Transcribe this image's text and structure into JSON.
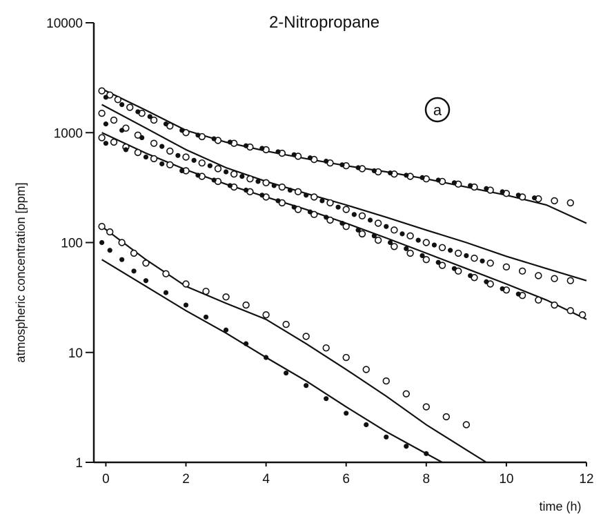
{
  "chart_data": {
    "type": "scatter",
    "title": "2-Nitropropane",
    "annotation": "a",
    "xlabel": "time (h)",
    "ylabel": "atmospheric concentration  [ppm]",
    "xlim": [
      -0.3,
      12
    ],
    "ylim": [
      1,
      10000
    ],
    "yscale": "log",
    "grid": false,
    "x_ticks": [
      0,
      2,
      4,
      6,
      8,
      10,
      12
    ],
    "x_tick_labels": [
      "0",
      "2",
      "4",
      "6",
      "8",
      "10",
      "12"
    ],
    "y_ticks": [
      1,
      10,
      100,
      1000,
      10000
    ],
    "y_tick_labels": [
      "1",
      "10",
      "100",
      "1000",
      "10000"
    ],
    "series": [
      {
        "marker": "open",
        "points": [
          [
            -0.1,
            2400
          ],
          [
            0.1,
            2200
          ],
          [
            0.3,
            2000
          ],
          [
            0.6,
            1700
          ],
          [
            0.9,
            1500
          ],
          [
            1.2,
            1300
          ],
          [
            1.6,
            1150
          ],
          [
            2.0,
            1000
          ],
          [
            2.4,
            920
          ],
          [
            2.8,
            850
          ],
          [
            3.2,
            800
          ],
          [
            3.6,
            740
          ],
          [
            4.0,
            700
          ],
          [
            4.4,
            650
          ],
          [
            4.8,
            610
          ],
          [
            5.2,
            570
          ],
          [
            5.6,
            530
          ],
          [
            6.0,
            500
          ],
          [
            6.4,
            470
          ],
          [
            6.8,
            440
          ],
          [
            7.2,
            420
          ],
          [
            7.6,
            400
          ],
          [
            8.0,
            380
          ],
          [
            8.4,
            360
          ],
          [
            8.8,
            340
          ],
          [
            9.2,
            320
          ],
          [
            9.6,
            300
          ],
          [
            10.0,
            280
          ],
          [
            10.4,
            260
          ],
          [
            10.8,
            250
          ],
          [
            11.2,
            240
          ],
          [
            11.6,
            230
          ]
        ]
      },
      {
        "marker": "filled",
        "points": [
          [
            0.0,
            2100
          ],
          [
            0.4,
            1800
          ],
          [
            0.8,
            1550
          ],
          [
            1.1,
            1400
          ],
          [
            1.5,
            1200
          ],
          [
            1.9,
            1050
          ],
          [
            2.3,
            950
          ],
          [
            2.7,
            880
          ],
          [
            3.1,
            820
          ],
          [
            3.5,
            760
          ],
          [
            3.9,
            720
          ],
          [
            4.3,
            670
          ],
          [
            4.7,
            630
          ],
          [
            5.1,
            590
          ],
          [
            5.5,
            550
          ],
          [
            5.9,
            510
          ],
          [
            6.3,
            480
          ],
          [
            6.7,
            450
          ],
          [
            7.1,
            430
          ],
          [
            7.5,
            410
          ],
          [
            7.9,
            390
          ],
          [
            8.3,
            370
          ],
          [
            8.7,
            350
          ],
          [
            9.1,
            330
          ],
          [
            9.5,
            310
          ],
          [
            9.9,
            290
          ],
          [
            10.3,
            270
          ],
          [
            10.7,
            255
          ]
        ]
      },
      {
        "marker": "open",
        "points": [
          [
            -0.1,
            1500
          ],
          [
            0.2,
            1300
          ],
          [
            0.5,
            1100
          ],
          [
            0.8,
            950
          ],
          [
            1.2,
            800
          ],
          [
            1.6,
            680
          ],
          [
            2.0,
            600
          ],
          [
            2.4,
            530
          ],
          [
            2.8,
            470
          ],
          [
            3.2,
            420
          ],
          [
            3.6,
            380
          ],
          [
            4.0,
            350
          ],
          [
            4.4,
            320
          ],
          [
            4.8,
            290
          ],
          [
            5.2,
            260
          ],
          [
            5.6,
            230
          ],
          [
            6.0,
            200
          ],
          [
            6.4,
            175
          ],
          [
            6.8,
            150
          ],
          [
            7.2,
            130
          ],
          [
            7.6,
            115
          ],
          [
            8.0,
            100
          ],
          [
            8.4,
            90
          ],
          [
            8.8,
            80
          ],
          [
            9.2,
            72
          ],
          [
            9.6,
            65
          ],
          [
            10.0,
            60
          ],
          [
            10.4,
            55
          ],
          [
            10.8,
            50
          ],
          [
            11.2,
            47
          ],
          [
            11.6,
            45
          ]
        ]
      },
      {
        "marker": "filled",
        "points": [
          [
            0.0,
            1200
          ],
          [
            0.4,
            1050
          ],
          [
            0.9,
            900
          ],
          [
            1.4,
            750
          ],
          [
            1.8,
            620
          ],
          [
            2.2,
            560
          ],
          [
            2.6,
            500
          ],
          [
            3.0,
            440
          ],
          [
            3.4,
            400
          ],
          [
            3.8,
            360
          ],
          [
            4.2,
            330
          ],
          [
            4.6,
            300
          ],
          [
            5.0,
            270
          ],
          [
            5.4,
            240
          ],
          [
            5.8,
            210
          ],
          [
            6.2,
            180
          ],
          [
            6.6,
            160
          ],
          [
            7.0,
            140
          ],
          [
            7.4,
            120
          ],
          [
            7.8,
            105
          ],
          [
            8.2,
            95
          ],
          [
            8.6,
            85
          ],
          [
            9.0,
            76
          ],
          [
            9.4,
            68
          ]
        ]
      },
      {
        "marker": "open",
        "points": [
          [
            -0.1,
            900
          ],
          [
            0.2,
            820
          ],
          [
            0.5,
            740
          ],
          [
            0.8,
            660
          ],
          [
            1.2,
            580
          ],
          [
            1.6,
            510
          ],
          [
            2.0,
            450
          ],
          [
            2.4,
            400
          ],
          [
            2.8,
            360
          ],
          [
            3.2,
            320
          ],
          [
            3.6,
            290
          ],
          [
            4.0,
            260
          ],
          [
            4.4,
            230
          ],
          [
            4.8,
            200
          ],
          [
            5.2,
            180
          ],
          [
            5.6,
            160
          ],
          [
            6.0,
            140
          ],
          [
            6.4,
            120
          ],
          [
            6.8,
            105
          ],
          [
            7.2,
            92
          ],
          [
            7.6,
            80
          ],
          [
            8.0,
            70
          ],
          [
            8.4,
            62
          ],
          [
            8.8,
            55
          ],
          [
            9.2,
            48
          ],
          [
            9.6,
            42
          ],
          [
            10.0,
            37
          ],
          [
            10.4,
            33
          ],
          [
            10.8,
            30
          ],
          [
            11.2,
            27
          ],
          [
            11.6,
            24
          ],
          [
            11.9,
            22
          ]
        ]
      },
      {
        "marker": "filled",
        "points": [
          [
            0.0,
            800
          ],
          [
            0.5,
            700
          ],
          [
            1.0,
            600
          ],
          [
            1.4,
            520
          ],
          [
            1.9,
            450
          ],
          [
            2.3,
            410
          ],
          [
            2.7,
            370
          ],
          [
            3.1,
            330
          ],
          [
            3.5,
            300
          ],
          [
            3.9,
            270
          ],
          [
            4.3,
            240
          ],
          [
            4.7,
            210
          ],
          [
            5.1,
            190
          ],
          [
            5.5,
            170
          ],
          [
            5.9,
            150
          ],
          [
            6.3,
            130
          ],
          [
            6.7,
            115
          ],
          [
            7.1,
            100
          ],
          [
            7.5,
            88
          ],
          [
            7.9,
            76
          ],
          [
            8.3,
            66
          ],
          [
            8.7,
            58
          ],
          [
            9.1,
            50
          ],
          [
            9.5,
            44
          ],
          [
            9.9,
            38
          ],
          [
            10.3,
            34
          ]
        ]
      },
      {
        "marker": "open",
        "points": [
          [
            -0.1,
            140
          ],
          [
            0.1,
            125
          ],
          [
            0.4,
            100
          ],
          [
            0.7,
            80
          ],
          [
            1.0,
            65
          ],
          [
            1.5,
            52
          ],
          [
            2.0,
            42
          ],
          [
            2.5,
            36
          ],
          [
            3.0,
            32
          ],
          [
            3.5,
            27
          ],
          [
            4.0,
            22
          ],
          [
            4.5,
            18
          ],
          [
            5.0,
            14
          ],
          [
            5.5,
            11
          ],
          [
            6.0,
            9
          ],
          [
            6.5,
            7
          ],
          [
            7.0,
            5.5
          ],
          [
            7.5,
            4.2
          ],
          [
            8.0,
            3.2
          ],
          [
            8.5,
            2.6
          ],
          [
            9.0,
            2.2
          ]
        ]
      },
      {
        "marker": "filled",
        "points": [
          [
            -0.1,
            100
          ],
          [
            0.1,
            85
          ],
          [
            0.4,
            70
          ],
          [
            0.7,
            55
          ],
          [
            1.0,
            45
          ],
          [
            1.5,
            35
          ],
          [
            2.0,
            27
          ],
          [
            2.5,
            21
          ],
          [
            3.0,
            16
          ],
          [
            3.5,
            12
          ],
          [
            4.0,
            9
          ],
          [
            4.5,
            6.5
          ],
          [
            5.0,
            5
          ],
          [
            5.5,
            3.8
          ],
          [
            6.0,
            2.8
          ],
          [
            6.5,
            2.2
          ],
          [
            7.0,
            1.7
          ],
          [
            7.5,
            1.4
          ],
          [
            8.0,
            1.2
          ]
        ]
      }
    ],
    "fitted_curves": [
      {
        "points": [
          [
            -0.1,
            2500
          ],
          [
            1,
            1600
          ],
          [
            2,
            1050
          ],
          [
            3,
            820
          ],
          [
            4,
            680
          ],
          [
            5,
            580
          ],
          [
            6,
            500
          ],
          [
            7,
            440
          ],
          [
            8,
            380
          ],
          [
            9,
            320
          ],
          [
            10,
            270
          ],
          [
            11,
            220
          ],
          [
            12,
            150
          ]
        ]
      },
      {
        "points": [
          [
            -0.1,
            1800
          ],
          [
            1,
            1100
          ],
          [
            2,
            700
          ],
          [
            3,
            480
          ],
          [
            4,
            360
          ],
          [
            5,
            280
          ],
          [
            6,
            220
          ],
          [
            7,
            170
          ],
          [
            8,
            130
          ],
          [
            9,
            100
          ],
          [
            10,
            75
          ],
          [
            11,
            58
          ],
          [
            12,
            45
          ]
        ]
      },
      {
        "points": [
          [
            -0.1,
            1000
          ],
          [
            1,
            650
          ],
          [
            2,
            460
          ],
          [
            3,
            340
          ],
          [
            4,
            260
          ],
          [
            5,
            200
          ],
          [
            6,
            150
          ],
          [
            7,
            110
          ],
          [
            8,
            80
          ],
          [
            9,
            58
          ],
          [
            10,
            42
          ],
          [
            11,
            30
          ],
          [
            12,
            20
          ]
        ]
      },
      {
        "points": [
          [
            -0.1,
            140
          ],
          [
            1,
            70
          ],
          [
            2,
            40
          ],
          [
            3,
            28
          ],
          [
            4,
            20
          ],
          [
            5,
            12
          ],
          [
            6,
            7
          ],
          [
            7,
            4
          ],
          [
            8,
            2.2
          ],
          [
            9,
            1.3
          ],
          [
            9.5,
            1
          ]
        ]
      },
      {
        "points": [
          [
            -0.1,
            70
          ],
          [
            1,
            40
          ],
          [
            2,
            24
          ],
          [
            3,
            15
          ],
          [
            4,
            9
          ],
          [
            5,
            5.5
          ],
          [
            6,
            3.2
          ],
          [
            7,
            1.9
          ],
          [
            8,
            1.2
          ],
          [
            8.4,
            1
          ]
        ]
      }
    ]
  }
}
